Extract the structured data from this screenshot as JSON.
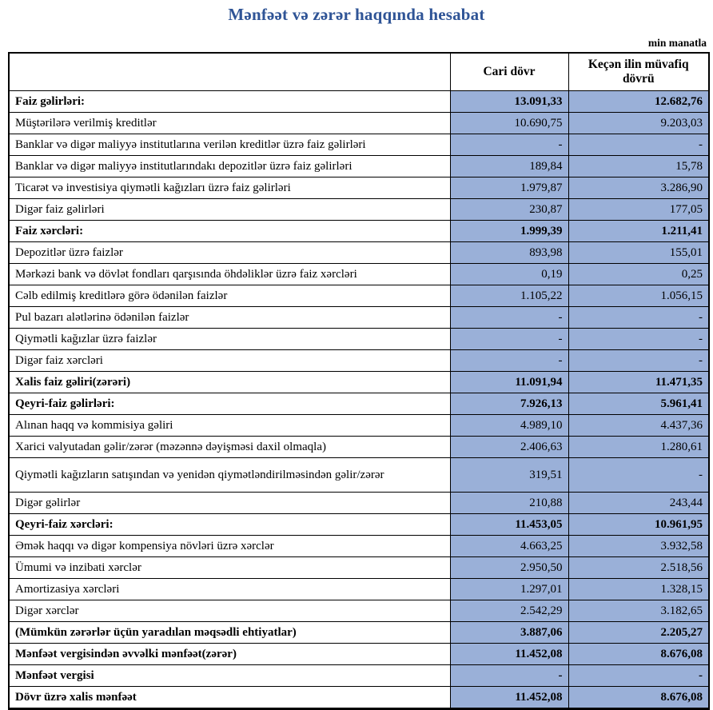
{
  "page": {
    "title": "Mənfəət və zərər haqqında hesabat",
    "unit_note": "min manatla"
  },
  "colors": {
    "title_text": "#2F5496",
    "value_cell_bg": "#9AB0D8",
    "table_border": "#000000"
  },
  "table": {
    "columns": {
      "label": "",
      "current": "Cari dövr",
      "previous": "Keçən ilin müvafiq dövrü"
    },
    "rows": [
      {
        "label": "Faiz gəlirləri:",
        "current": "13.091,33",
        "previous": "12.682,76",
        "bold": true
      },
      {
        "label": "Müştərilərə verilmiş kreditlər",
        "current": "10.690,75",
        "previous": "9.203,03"
      },
      {
        "label": "Banklar və digər maliyyə institutlarına verilən kreditlər üzrə faiz gəlirləri",
        "current": "-",
        "previous": "-"
      },
      {
        "label": "Banklar və digər maliyyə institutlarındakı depozitlər üzrə faiz gəlirləri",
        "current": "189,84",
        "previous": "15,78"
      },
      {
        "label": "Ticarət və investisiya qiymətli kağızları üzrə faiz gəlirləri",
        "current": "1.979,87",
        "previous": "3.286,90"
      },
      {
        "label": "Digər faiz gəlirləri",
        "current": "230,87",
        "previous": "177,05"
      },
      {
        "label": "Faiz xərcləri:",
        "current": "1.999,39",
        "previous": "1.211,41",
        "bold": true
      },
      {
        "label": "Depozitlər üzrə faizlər",
        "current": "893,98",
        "previous": "155,01"
      },
      {
        "label": "Mərkəzi bank və dövlət fondları qarşısında öhdəliklər üzrə faiz xərcləri",
        "current": "0,19",
        "previous": "0,25"
      },
      {
        "label": "Cəlb edilmiş kreditlərə görə ödənilən faizlər",
        "current": "1.105,22",
        "previous": "1.056,15"
      },
      {
        "label": "Pul bazarı alətlərinə ödənilən faizlər",
        "current": "-",
        "previous": "-"
      },
      {
        "label": "Qiymətli kağızlar üzrə faizlər",
        "current": "-",
        "previous": "-"
      },
      {
        "label": "Digər faiz xərcləri",
        "current": "-",
        "previous": "-"
      },
      {
        "label": "Xalis faiz gəliri(zərəri)",
        "current": "11.091,94",
        "previous": "11.471,35",
        "bold": true
      },
      {
        "label": "Qeyri-faiz gəlirləri:",
        "current": "7.926,13",
        "previous": "5.961,41",
        "bold": true
      },
      {
        "label": "Alınan haqq və kommisiya gəliri",
        "current": "4.989,10",
        "previous": "4.437,36"
      },
      {
        "label": "Xarici valyutadan gəlir/zərər (məzənnə dəyişməsi daxil olmaqla)",
        "current": "2.406,63",
        "previous": "1.280,61"
      },
      {
        "label": "Qiymətli kağızların satışından və yenidən qiymətləndirilməsindən gəlir/zərər",
        "current": "319,51",
        "previous": "-",
        "tall": true
      },
      {
        "label": "Digər gəlirlər",
        "current": "210,88",
        "previous": "243,44"
      },
      {
        "label": "Qeyri-faiz xərcləri:",
        "current": "11.453,05",
        "previous": "10.961,95",
        "bold": true
      },
      {
        "label": "Əmək haqqı və digər kompensiya növləri üzrə xərclər",
        "current": "4.663,25",
        "previous": "3.932,58"
      },
      {
        "label": "Ümumi və inzibati xərclər",
        "current": "2.950,50",
        "previous": "2.518,56"
      },
      {
        "label": "Amortizasiya xərcləri",
        "current": "1.297,01",
        "previous": "1.328,15"
      },
      {
        "label": "Digər xərclər",
        "current": "2.542,29",
        "previous": "3.182,65"
      },
      {
        "label": "(Mümkün zərərlər üçün yaradılan məqsədli ehtiyatlar)",
        "current": "3.887,06",
        "previous": "2.205,27",
        "bold": true
      },
      {
        "label": "Mənfəət vergisindən əvvəlki mənfəət(zərər)",
        "current": "11.452,08",
        "previous": "8.676,08",
        "bold": true
      },
      {
        "label": "Mənfəət vergisi",
        "current": "-",
        "previous": "-",
        "bold": true
      },
      {
        "label": "Dövr üzrə xalis mənfəət",
        "current": "11.452,08",
        "previous": "8.676,08",
        "bold": true
      }
    ]
  }
}
